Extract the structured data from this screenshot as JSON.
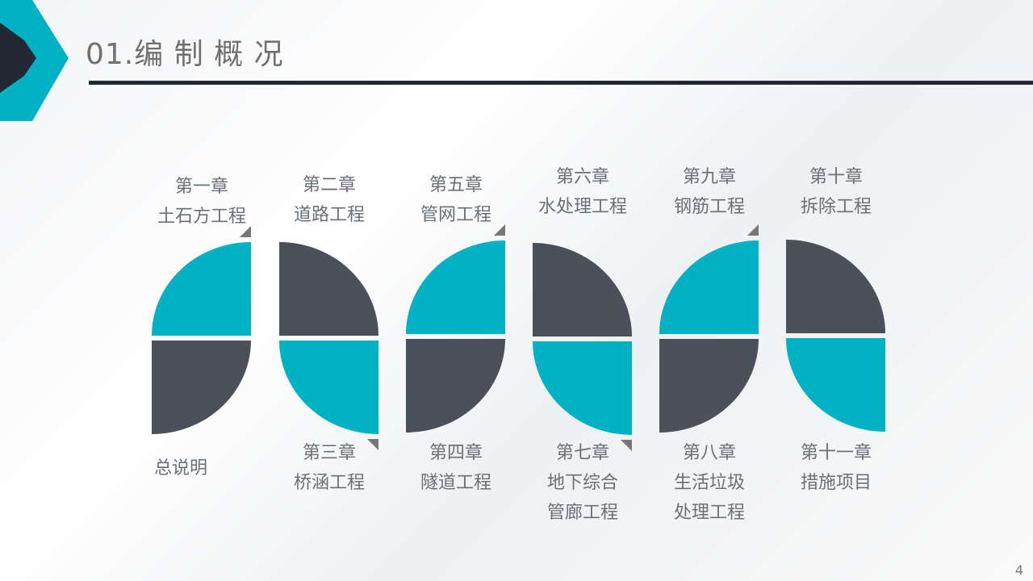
{
  "header": {
    "title": "01.编 制 概 况"
  },
  "colors": {
    "teal": "#00b2c4",
    "dark": "#4b515b",
    "rule": "#222833"
  },
  "top_labels": [
    "第一章\n土石方工程",
    "第二章\n道路工程",
    "第五章\n管网工程",
    "第六章\n水处理工程",
    "第九章\n钢筋工程",
    "第十章\n拆除工程"
  ],
  "bottom_labels": [
    "总说明",
    "第三章\n桥涵工程",
    "第四章\n隧道工程",
    "第七章\n地下综合\n管廊工程",
    "第八章\n生活垃圾\n处理工程",
    "第十一章\n措施项目"
  ],
  "page_number": "4"
}
